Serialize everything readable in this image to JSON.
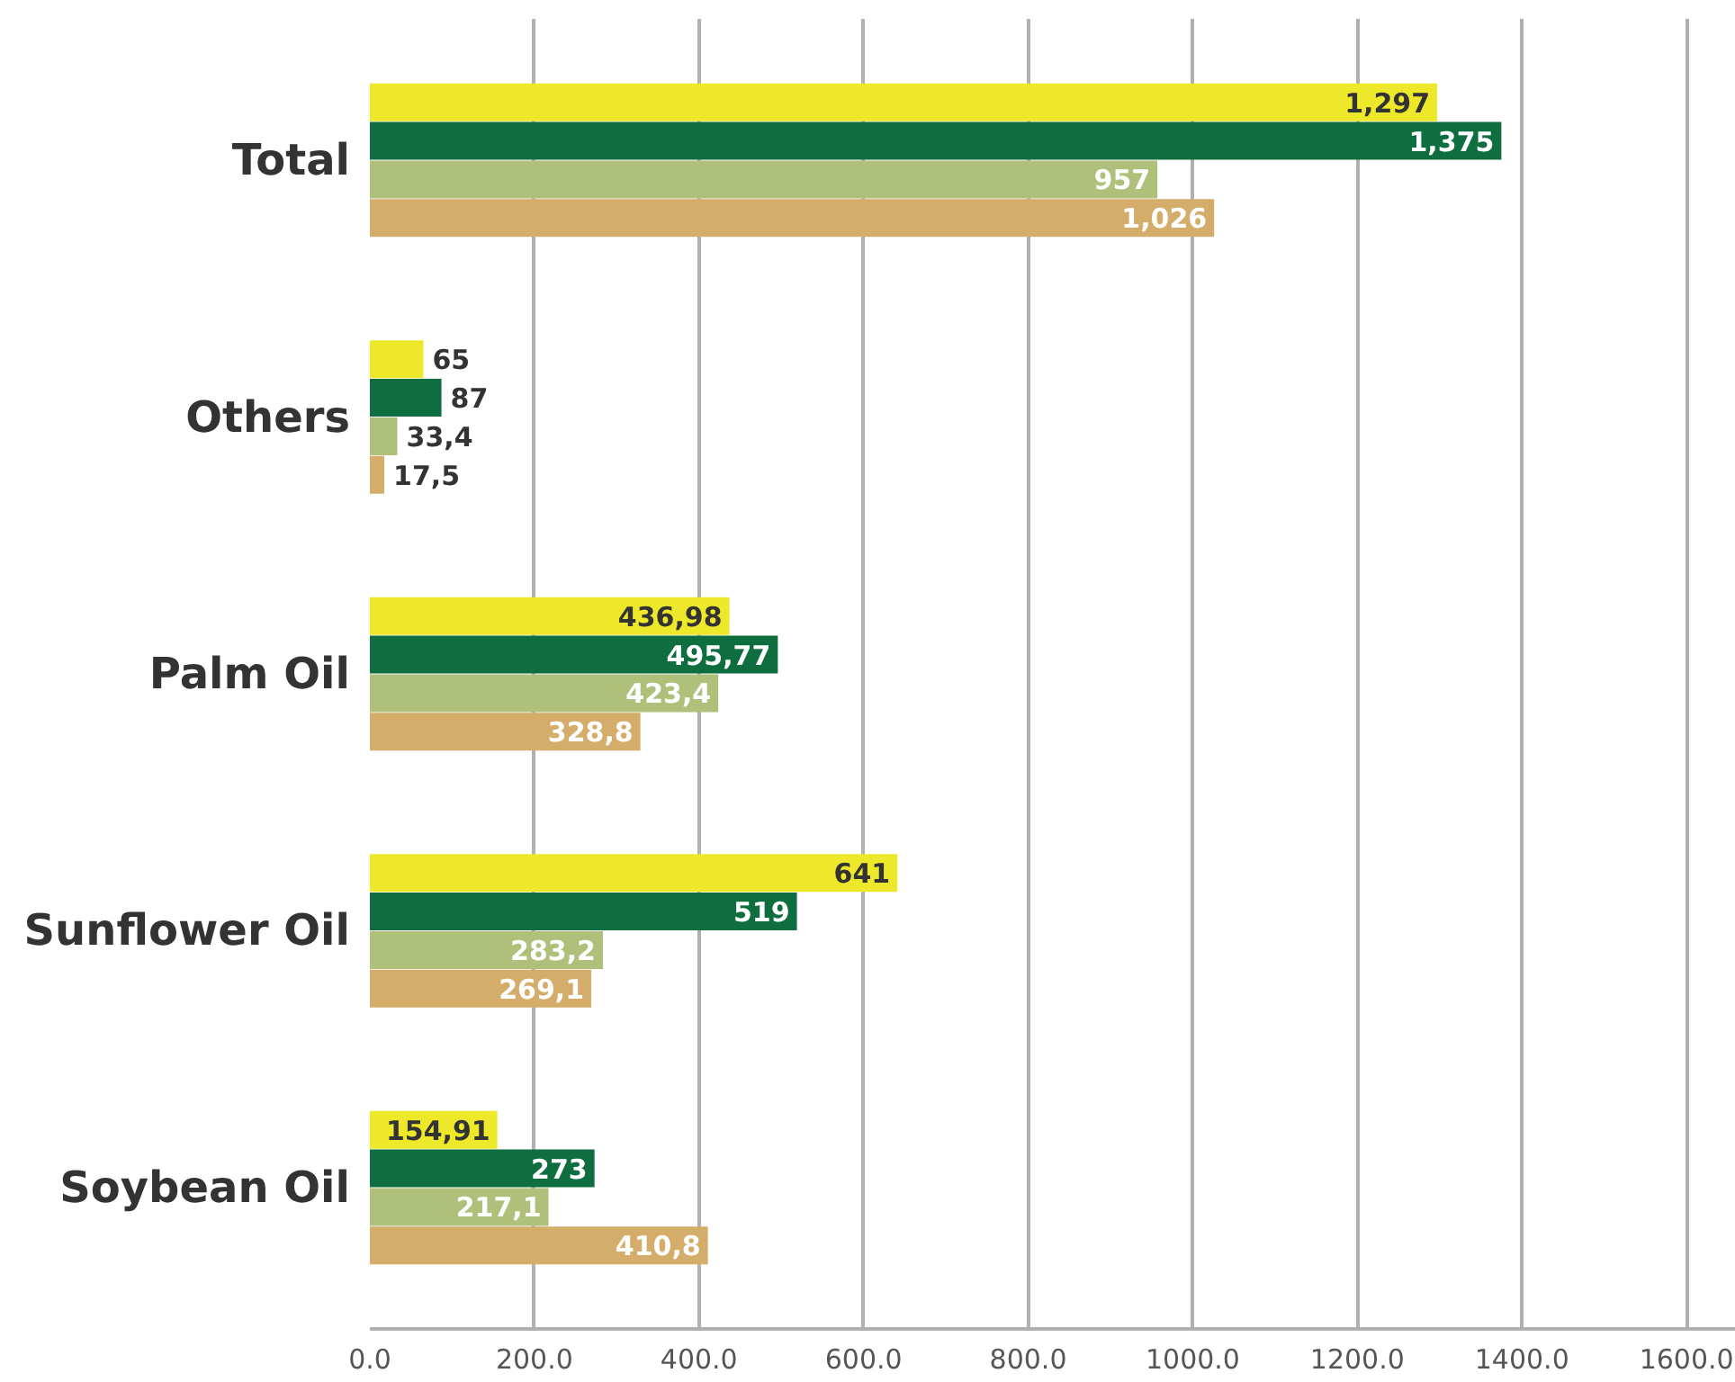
{
  "chart_data": {
    "type": "bar",
    "orientation": "horizontal",
    "categories": [
      "Total",
      "Others",
      "Palm Oil",
      "Sunflower Oil",
      "Soybean Oil"
    ],
    "series": [
      {
        "color": "#ede82a",
        "values": [
          1297,
          65,
          436.98,
          641,
          154.91
        ],
        "value_labels": [
          "1,297",
          "65",
          "436,98",
          "641",
          "154,91"
        ]
      },
      {
        "color": "#0e6e3f",
        "values": [
          1375,
          87,
          495.77,
          519,
          273
        ],
        "value_labels": [
          "1,375",
          "87",
          "495,77",
          "519",
          "273"
        ]
      },
      {
        "color": "#afc07a",
        "values": [
          957,
          33.4,
          423.4,
          283.2,
          217.1
        ],
        "value_labels": [
          "957",
          "33,4",
          "423,4",
          "283,2",
          "217,1"
        ]
      },
      {
        "color": "#d4ad6a",
        "values": [
          1026,
          17.5,
          328.8,
          269.1,
          410.8
        ],
        "value_labels": [
          "1,026",
          "17,5",
          "328,8",
          "269,1",
          "410,8"
        ]
      }
    ],
    "xlim": [
      0,
      1660
    ],
    "xticks": [
      {
        "value": 0,
        "label": "0.0"
      },
      {
        "value": 200,
        "label": "200.0"
      },
      {
        "value": 400,
        "label": "400.0"
      },
      {
        "value": 600,
        "label": "600.0"
      },
      {
        "value": 800,
        "label": "800.0"
      },
      {
        "value": 1000,
        "label": "1000.0"
      },
      {
        "value": 1200,
        "label": "1200.0"
      },
      {
        "value": 1400,
        "label": "1400.0"
      },
      {
        "value": 1600,
        "label": "1600.0"
      }
    ],
    "grid": "x"
  }
}
